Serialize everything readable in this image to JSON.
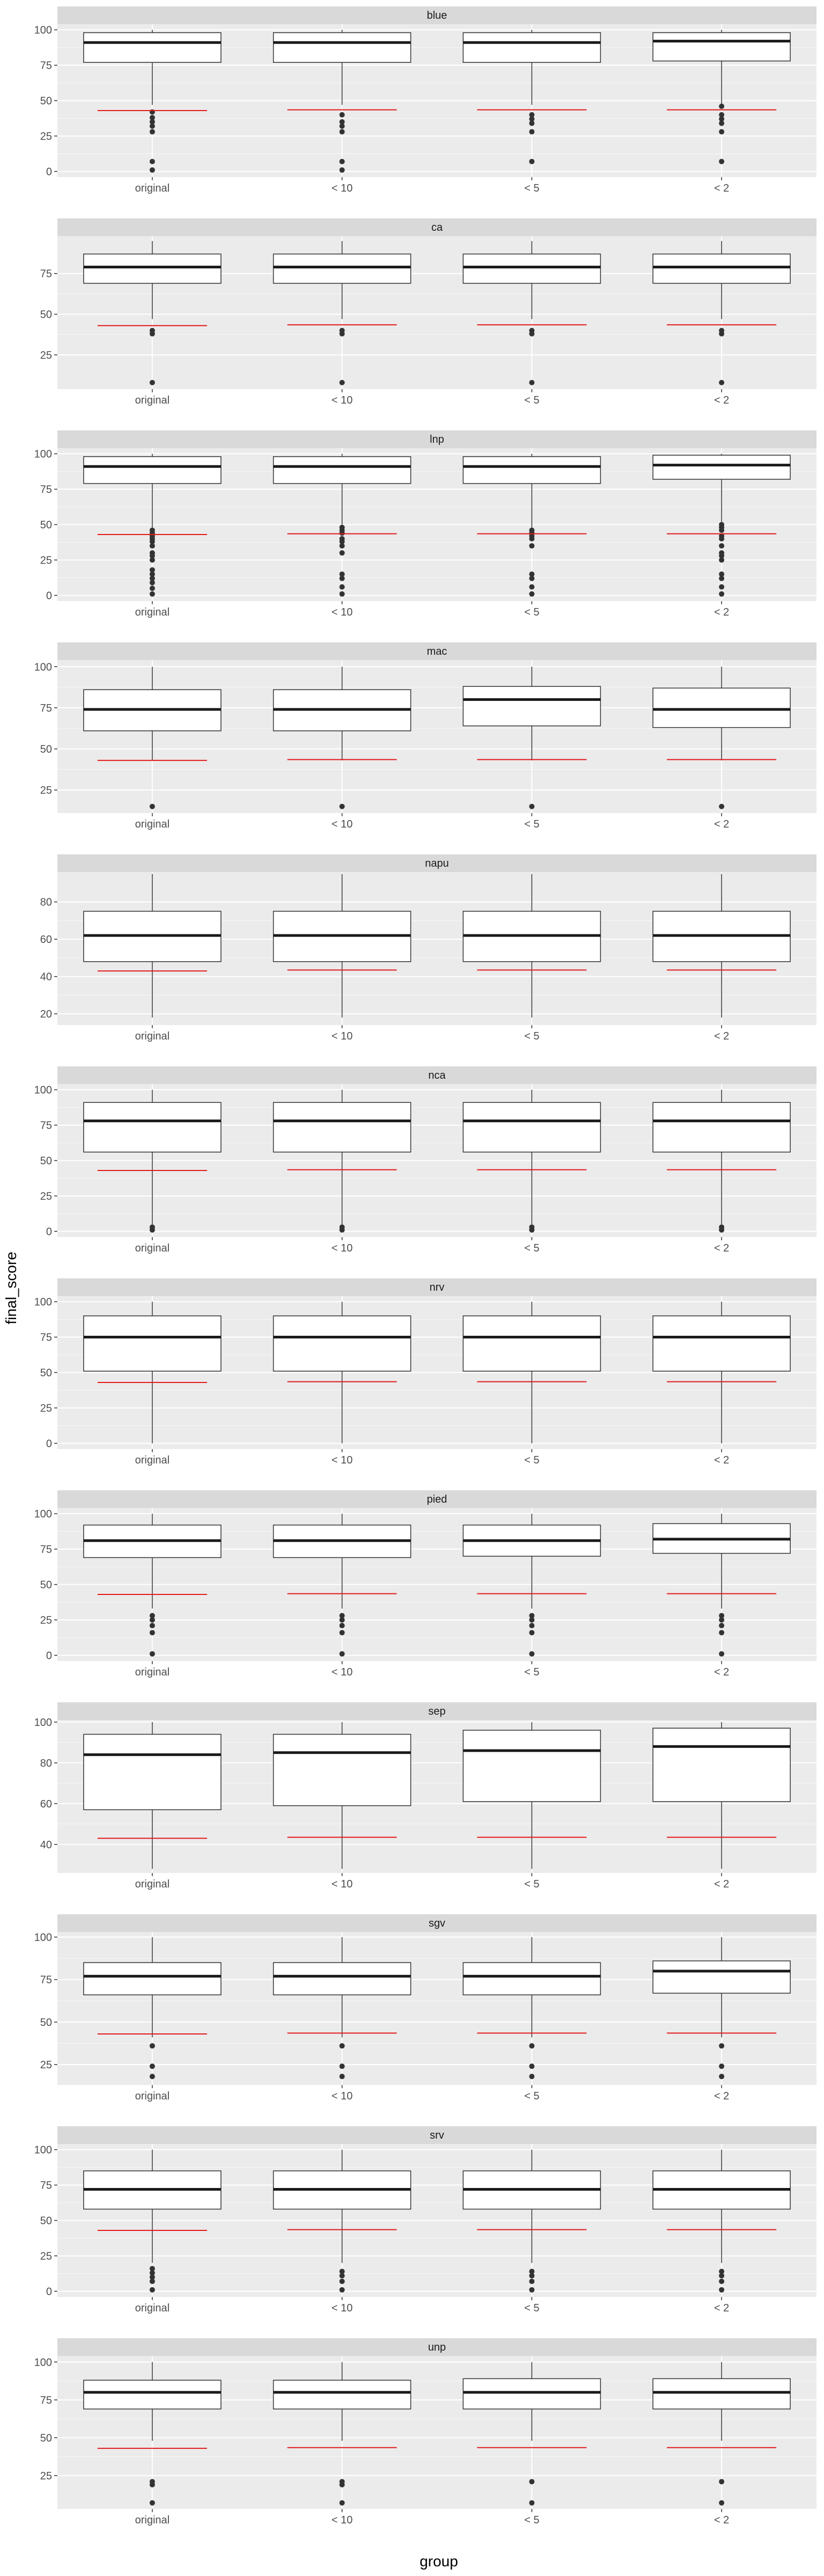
{
  "x_axis_title": "group",
  "y_axis_title": "final_score",
  "colors": {
    "panel_background": "#ebebeb",
    "grid_major": "#ffffff",
    "strip_background": "#d9d9d9",
    "box_fill": "#ffffff",
    "box_outline": "#333333",
    "outlier": "#333333",
    "reference_line": "#e31a1c",
    "text": "#4d4d4d"
  },
  "chart_data": {
    "type": "boxplot",
    "facet_layout": "vertical",
    "groups": [
      "original",
      "< 10",
      "< 5",
      "< 2"
    ],
    "panels": [
      {
        "title": "blue",
        "y_ticks": [
          0,
          25,
          50,
          75,
          100
        ],
        "ylim": [
          -4,
          104
        ],
        "boxes": [
          {
            "low": 47,
            "q1": 77,
            "median": 91,
            "q3": 98,
            "high": 100,
            "outliers": [
              42,
              38,
              35,
              32,
              28,
              7,
              1
            ],
            "ref": 43
          },
          {
            "low": 47,
            "q1": 77,
            "median": 91,
            "q3": 98,
            "high": 100,
            "outliers": [
              40,
              35,
              32,
              28,
              7,
              1
            ],
            "ref": 43.5
          },
          {
            "low": 47,
            "q1": 77,
            "median": 91,
            "q3": 98,
            "high": 100,
            "outliers": [
              40,
              37,
              34,
              28,
              7
            ],
            "ref": 43.5
          },
          {
            "low": 47,
            "q1": 78,
            "median": 92,
            "q3": 98,
            "high": 100,
            "outliers": [
              46,
              40,
              37,
              34,
              28,
              7
            ],
            "ref": 43.5
          }
        ]
      },
      {
        "title": "ca",
        "y_ticks": [
          25,
          50,
          75
        ],
        "ylim": [
          4,
          98
        ],
        "boxes": [
          {
            "low": 47,
            "q1": 69,
            "median": 79,
            "q3": 87,
            "high": 95,
            "outliers": [
              40,
              38,
              8
            ],
            "ref": 43
          },
          {
            "low": 47,
            "q1": 69,
            "median": 79,
            "q3": 87,
            "high": 95,
            "outliers": [
              40,
              38,
              8
            ],
            "ref": 43.5
          },
          {
            "low": 47,
            "q1": 69,
            "median": 79,
            "q3": 87,
            "high": 95,
            "outliers": [
              40,
              38,
              8
            ],
            "ref": 43.5
          },
          {
            "low": 47,
            "q1": 69,
            "median": 79,
            "q3": 87,
            "high": 95,
            "outliers": [
              40,
              38,
              8
            ],
            "ref": 43.5
          }
        ]
      },
      {
        "title": "lnp",
        "y_ticks": [
          0,
          25,
          50,
          75,
          100
        ],
        "ylim": [
          -4,
          104
        ],
        "boxes": [
          {
            "low": 48,
            "q1": 79,
            "median": 91,
            "q3": 98,
            "high": 100,
            "outliers": [
              46,
              44,
              42,
              40,
              38,
              35,
              30,
              28,
              25,
              18,
              15,
              12,
              9,
              5,
              1
            ],
            "ref": 43
          },
          {
            "low": 50,
            "q1": 79,
            "median": 91,
            "q3": 98,
            "high": 100,
            "outliers": [
              48,
              46,
              44,
              40,
              38,
              35,
              30,
              15,
              12,
              6,
              1
            ],
            "ref": 43.5
          },
          {
            "low": 48,
            "q1": 79,
            "median": 91,
            "q3": 98,
            "high": 100,
            "outliers": [
              46,
              44,
              42,
              40,
              35,
              15,
              12,
              6,
              1
            ],
            "ref": 43.5
          },
          {
            "low": 52,
            "q1": 82,
            "median": 92,
            "q3": 99,
            "high": 100,
            "outliers": [
              50,
              48,
              46,
              42,
              40,
              35,
              30,
              28,
              25,
              15,
              12,
              6,
              1
            ],
            "ref": 43.5
          }
        ]
      },
      {
        "title": "mac",
        "y_ticks": [
          25,
          50,
          75,
          100
        ],
        "ylim": [
          11,
          104
        ],
        "boxes": [
          {
            "low": 43,
            "q1": 61,
            "median": 74,
            "q3": 86,
            "high": 100,
            "outliers": [
              15
            ],
            "ref": 43
          },
          {
            "low": 43,
            "q1": 61,
            "median": 74,
            "q3": 86,
            "high": 100,
            "outliers": [
              15
            ],
            "ref": 43.5
          },
          {
            "low": 43,
            "q1": 64,
            "median": 80,
            "q3": 88,
            "high": 100,
            "outliers": [
              15
            ],
            "ref": 43.5
          },
          {
            "low": 43,
            "q1": 63,
            "median": 74,
            "q3": 87,
            "high": 100,
            "outliers": [
              15
            ],
            "ref": 43.5
          }
        ]
      },
      {
        "title": "napu",
        "y_ticks": [
          20,
          40,
          60,
          80
        ],
        "ylim": [
          14,
          96
        ],
        "boxes": [
          {
            "low": 18,
            "q1": 48,
            "median": 62,
            "q3": 75,
            "high": 95,
            "outliers": [],
            "ref": 43
          },
          {
            "low": 18,
            "q1": 48,
            "median": 62,
            "q3": 75,
            "high": 95,
            "outliers": [],
            "ref": 43.5
          },
          {
            "low": 18,
            "q1": 48,
            "median": 62,
            "q3": 75,
            "high": 95,
            "outliers": [],
            "ref": 43.5
          },
          {
            "low": 18,
            "q1": 48,
            "median": 62,
            "q3": 75,
            "high": 95,
            "outliers": [],
            "ref": 43.5
          }
        ]
      },
      {
        "title": "nca",
        "y_ticks": [
          0,
          25,
          50,
          75,
          100
        ],
        "ylim": [
          -4,
          104
        ],
        "boxes": [
          {
            "low": 5,
            "q1": 56,
            "median": 78,
            "q3": 91,
            "high": 100,
            "outliers": [
              3,
              1
            ],
            "ref": 43
          },
          {
            "low": 5,
            "q1": 56,
            "median": 78,
            "q3": 91,
            "high": 100,
            "outliers": [
              3,
              1
            ],
            "ref": 43.5
          },
          {
            "low": 5,
            "q1": 56,
            "median": 78,
            "q3": 91,
            "high": 100,
            "outliers": [
              3,
              1
            ],
            "ref": 43.5
          },
          {
            "low": 5,
            "q1": 56,
            "median": 78,
            "q3": 91,
            "high": 100,
            "outliers": [
              3,
              1
            ],
            "ref": 43.5
          }
        ]
      },
      {
        "title": "nrv",
        "y_ticks": [
          0,
          25,
          50,
          75,
          100
        ],
        "ylim": [
          -4,
          104
        ],
        "boxes": [
          {
            "low": 0,
            "q1": 51,
            "median": 75,
            "q3": 90,
            "high": 100,
            "outliers": [],
            "ref": 43
          },
          {
            "low": 0,
            "q1": 51,
            "median": 75,
            "q3": 90,
            "high": 100,
            "outliers": [],
            "ref": 43.5
          },
          {
            "low": 0,
            "q1": 51,
            "median": 75,
            "q3": 90,
            "high": 100,
            "outliers": [],
            "ref": 43.5
          },
          {
            "low": 0,
            "q1": 51,
            "median": 75,
            "q3": 90,
            "high": 100,
            "outliers": [],
            "ref": 43.5
          }
        ]
      },
      {
        "title": "pied",
        "y_ticks": [
          0,
          25,
          50,
          75,
          100
        ],
        "ylim": [
          -4,
          104
        ],
        "boxes": [
          {
            "low": 33,
            "q1": 69,
            "median": 81,
            "q3": 92,
            "high": 100,
            "outliers": [
              28,
              25,
              21,
              16,
              1
            ],
            "ref": 43
          },
          {
            "low": 33,
            "q1": 69,
            "median": 81,
            "q3": 92,
            "high": 100,
            "outliers": [
              28,
              25,
              21,
              16,
              1
            ],
            "ref": 43.5
          },
          {
            "low": 33,
            "q1": 70,
            "median": 81,
            "q3": 92,
            "high": 100,
            "outliers": [
              28,
              25,
              21,
              16,
              1
            ],
            "ref": 43.5
          },
          {
            "low": 33,
            "q1": 72,
            "median": 82,
            "q3": 93,
            "high": 100,
            "outliers": [
              28,
              25,
              21,
              16,
              1
            ],
            "ref": 43.5
          }
        ]
      },
      {
        "title": "sep",
        "y_ticks": [
          40,
          60,
          80,
          100
        ],
        "ylim": [
          26,
          101
        ],
        "boxes": [
          {
            "low": 28,
            "q1": 57,
            "median": 84,
            "q3": 94,
            "high": 100,
            "outliers": [],
            "ref": 43
          },
          {
            "low": 28,
            "q1": 59,
            "median": 85,
            "q3": 94,
            "high": 100,
            "outliers": [],
            "ref": 43.5
          },
          {
            "low": 28,
            "q1": 61,
            "median": 86,
            "q3": 96,
            "high": 100,
            "outliers": [],
            "ref": 43.5
          },
          {
            "low": 28,
            "q1": 61,
            "median": 88,
            "q3": 97,
            "high": 100,
            "outliers": [],
            "ref": 43.5
          }
        ]
      },
      {
        "title": "sgv",
        "y_ticks": [
          25,
          50,
          75,
          100
        ],
        "ylim": [
          13,
          103
        ],
        "boxes": [
          {
            "low": 41,
            "q1": 66,
            "median": 77,
            "q3": 85,
            "high": 100,
            "outliers": [
              36,
              24,
              18
            ],
            "ref": 43
          },
          {
            "low": 41,
            "q1": 66,
            "median": 77,
            "q3": 85,
            "high": 100,
            "outliers": [
              36,
              24,
              18
            ],
            "ref": 43.5
          },
          {
            "low": 41,
            "q1": 66,
            "median": 77,
            "q3": 85,
            "high": 100,
            "outliers": [
              36,
              24,
              18
            ],
            "ref": 43.5
          },
          {
            "low": 41,
            "q1": 67,
            "median": 80,
            "q3": 86,
            "high": 100,
            "outliers": [
              36,
              24,
              18
            ],
            "ref": 43.5
          }
        ]
      },
      {
        "title": "srv",
        "y_ticks": [
          0,
          25,
          50,
          75,
          100
        ],
        "ylim": [
          -4,
          104
        ],
        "boxes": [
          {
            "low": 20,
            "q1": 58,
            "median": 72,
            "q3": 85,
            "high": 100,
            "outliers": [
              16,
              13,
              10,
              7,
              1
            ],
            "ref": 43
          },
          {
            "low": 20,
            "q1": 58,
            "median": 72,
            "q3": 85,
            "high": 100,
            "outliers": [
              14,
              11,
              7,
              1
            ],
            "ref": 43.5
          },
          {
            "low": 20,
            "q1": 58,
            "median": 72,
            "q3": 85,
            "high": 100,
            "outliers": [
              14,
              11,
              7,
              1
            ],
            "ref": 43.5
          },
          {
            "low": 20,
            "q1": 58,
            "median": 72,
            "q3": 85,
            "high": 100,
            "outliers": [
              14,
              11,
              7,
              1
            ],
            "ref": 43.5
          }
        ]
      },
      {
        "title": "unp",
        "y_ticks": [
          25,
          50,
          75,
          100
        ],
        "ylim": [
          3,
          104
        ],
        "boxes": [
          {
            "low": 48,
            "q1": 69,
            "median": 80,
            "q3": 88,
            "high": 100,
            "outliers": [
              21,
              19,
              7
            ],
            "ref": 43
          },
          {
            "low": 48,
            "q1": 69,
            "median": 80,
            "q3": 88,
            "high": 100,
            "outliers": [
              21,
              19,
              7
            ],
            "ref": 43.5
          },
          {
            "low": 48,
            "q1": 69,
            "median": 80,
            "q3": 89,
            "high": 100,
            "outliers": [
              21,
              7
            ],
            "ref": 43.5
          },
          {
            "low": 48,
            "q1": 69,
            "median": 80,
            "q3": 89,
            "high": 100,
            "outliers": [
              21,
              7
            ],
            "ref": 43.5
          }
        ]
      }
    ]
  }
}
